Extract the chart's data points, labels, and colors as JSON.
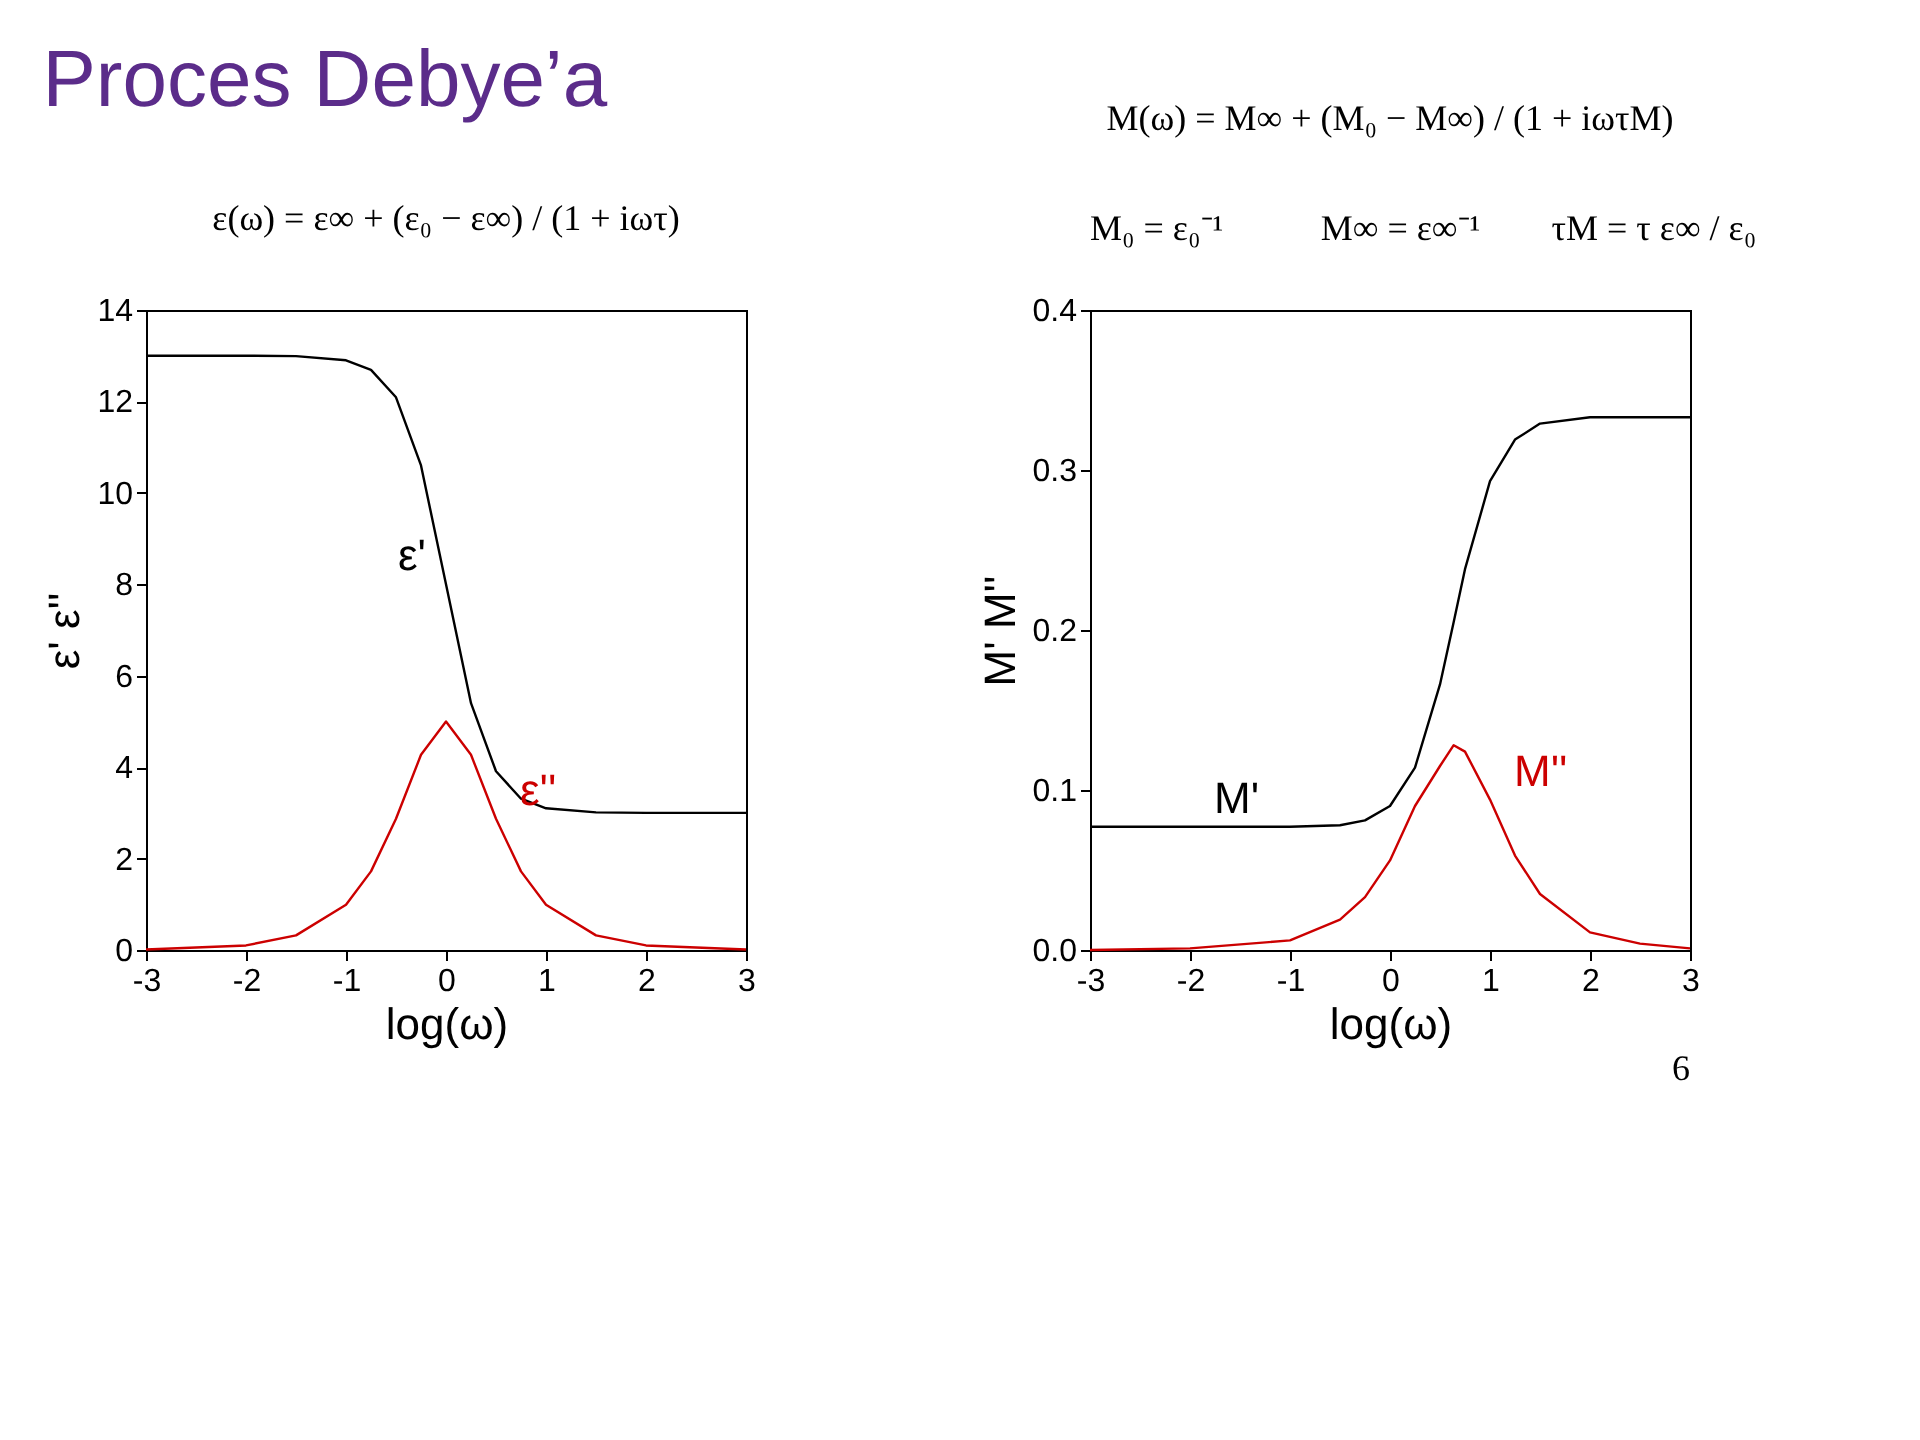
{
  "chart_data": [
    {
      "type": "line",
      "title": "Proces Debye’a",
      "xlabel": "log(ω)",
      "ylabel": "ε' ε''",
      "annotations": [
        "ε(ω) = ε∞ + (ε₀ − ε∞) / (1 + iωτ)"
      ],
      "xlim": [
        -3,
        3
      ],
      "xticks": [
        -3,
        -2,
        -1,
        0,
        1,
        2,
        3
      ],
      "ylim": [
        0,
        14
      ],
      "yticks": [
        0,
        2,
        4,
        6,
        8,
        10,
        12,
        14
      ],
      "grid": false,
      "legend": false,
      "x": [
        -3,
        -2,
        -1.5,
        -1,
        -0.75,
        -0.5,
        -0.25,
        0,
        0.25,
        0.5,
        0.75,
        1,
        1.5,
        2,
        3
      ],
      "series": [
        {
          "name": "ε'",
          "color": "#000000",
          "values": [
            13.0,
            13.0,
            12.99,
            12.9,
            12.69,
            12.09,
            10.6,
            8.0,
            5.4,
            3.91,
            3.31,
            3.1,
            3.01,
            3.0,
            3.0
          ]
        },
        {
          "name": "ε''",
          "color": "#cc0000",
          "values": [
            0.01,
            0.1,
            0.32,
            0.99,
            1.72,
            2.87,
            4.27,
            5.0,
            4.27,
            2.87,
            1.72,
            0.99,
            0.32,
            0.1,
            0.01
          ]
        }
      ]
    },
    {
      "type": "line",
      "xlabel": "log(ω)",
      "ylabel": "M' M''",
      "annotations": [
        "M(ω) = M∞ + (M₀ − M∞) / (1 + iωτM)",
        "M₀ = ε₀⁻¹",
        "M∞ = ε∞⁻¹",
        "τM = τ ε∞ / ε₀",
        "6"
      ],
      "xlim": [
        -3,
        3
      ],
      "xticks": [
        -3,
        -2,
        -1,
        0,
        1,
        2,
        3
      ],
      "ylim": [
        0,
        0.4
      ],
      "yticks": [
        {
          "value": 0,
          "label": "0.0"
        },
        0.1,
        0.2,
        0.3,
        0.4
      ],
      "grid": false,
      "legend": false,
      "x": [
        -3,
        -2,
        -1,
        -0.5,
        -0.25,
        0,
        0.25,
        0.5,
        0.637,
        0.75,
        1,
        1.25,
        1.5,
        2,
        2.5,
        3
      ],
      "series": [
        {
          "name": "M'",
          "color": "#000000",
          "values": [
            0.077,
            0.077,
            0.077,
            0.078,
            0.081,
            0.09,
            0.114,
            0.166,
            0.205,
            0.238,
            0.293,
            0.319,
            0.329,
            0.333,
            0.333,
            0.333
          ]
        },
        {
          "name": "M''",
          "color": "#cc0000",
          "values": [
            0.0,
            0.001,
            0.006,
            0.019,
            0.033,
            0.056,
            0.09,
            0.115,
            0.128,
            0.124,
            0.094,
            0.059,
            0.035,
            0.011,
            0.004,
            0.001
          ]
        }
      ]
    }
  ]
}
